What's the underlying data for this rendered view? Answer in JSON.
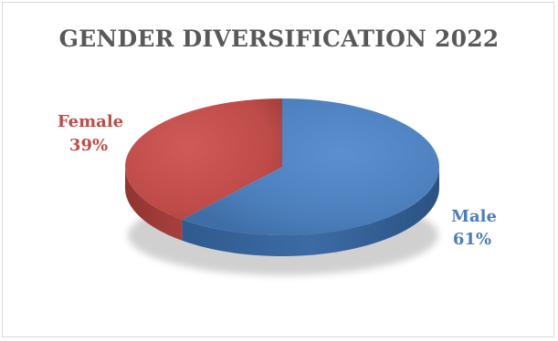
{
  "chart_data": {
    "type": "pie",
    "title": "GENDER DIVERSIFICATION 2022",
    "categories": [
      "Male",
      "Female"
    ],
    "values": [
      61,
      39
    ],
    "labels": [
      {
        "category": "Male",
        "percent": "61%"
      },
      {
        "category": "Female",
        "percent": "39%"
      }
    ],
    "colors": {
      "Male": "#4a7ebb",
      "Female": "#be4b48"
    },
    "style": "3d-pie",
    "legend": "none"
  }
}
